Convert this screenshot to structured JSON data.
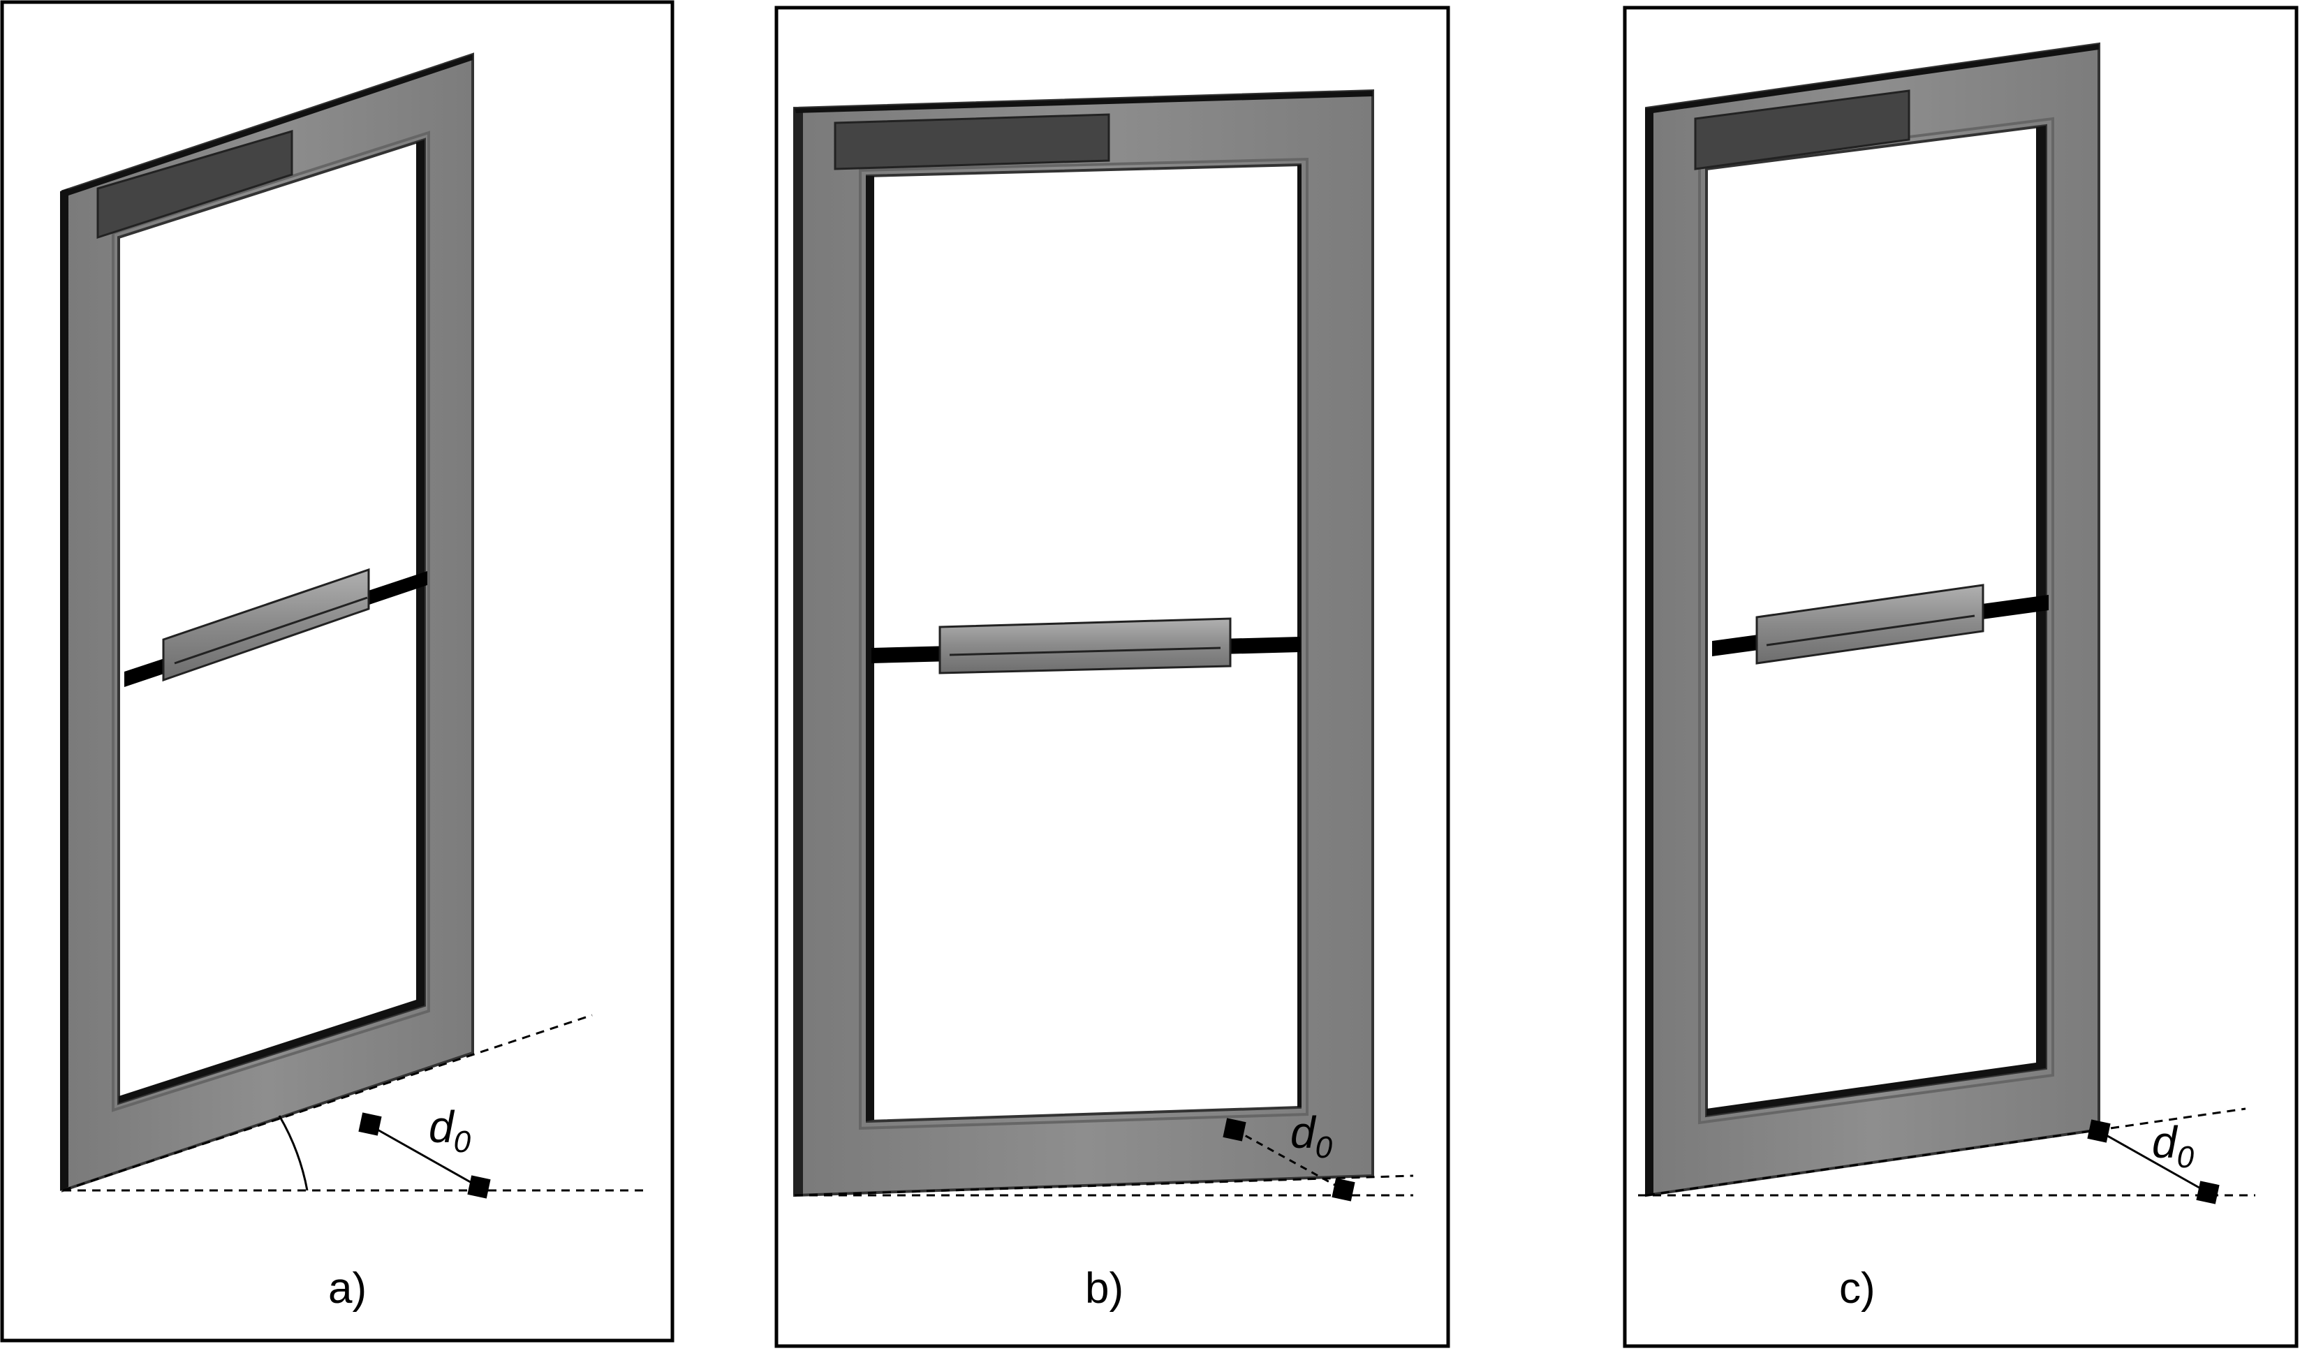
{
  "panels": [
    {
      "id": "a",
      "label": "a)",
      "distance_symbol": "d",
      "distance_subscript": "0"
    },
    {
      "id": "b",
      "label": "b)",
      "distance_symbol": "d",
      "distance_subscript": "0"
    },
    {
      "id": "c",
      "label": "c)",
      "distance_symbol": "d",
      "distance_subscript": "0"
    }
  ],
  "colors": {
    "frame_face": "#8a8a8a",
    "frame_edge": "#2b2b2b",
    "frame_side": "#5a5a5a",
    "label_plate": "#444444",
    "handle_body": "#9a9a9a",
    "bar": "#000000",
    "background": "#ffffff"
  }
}
